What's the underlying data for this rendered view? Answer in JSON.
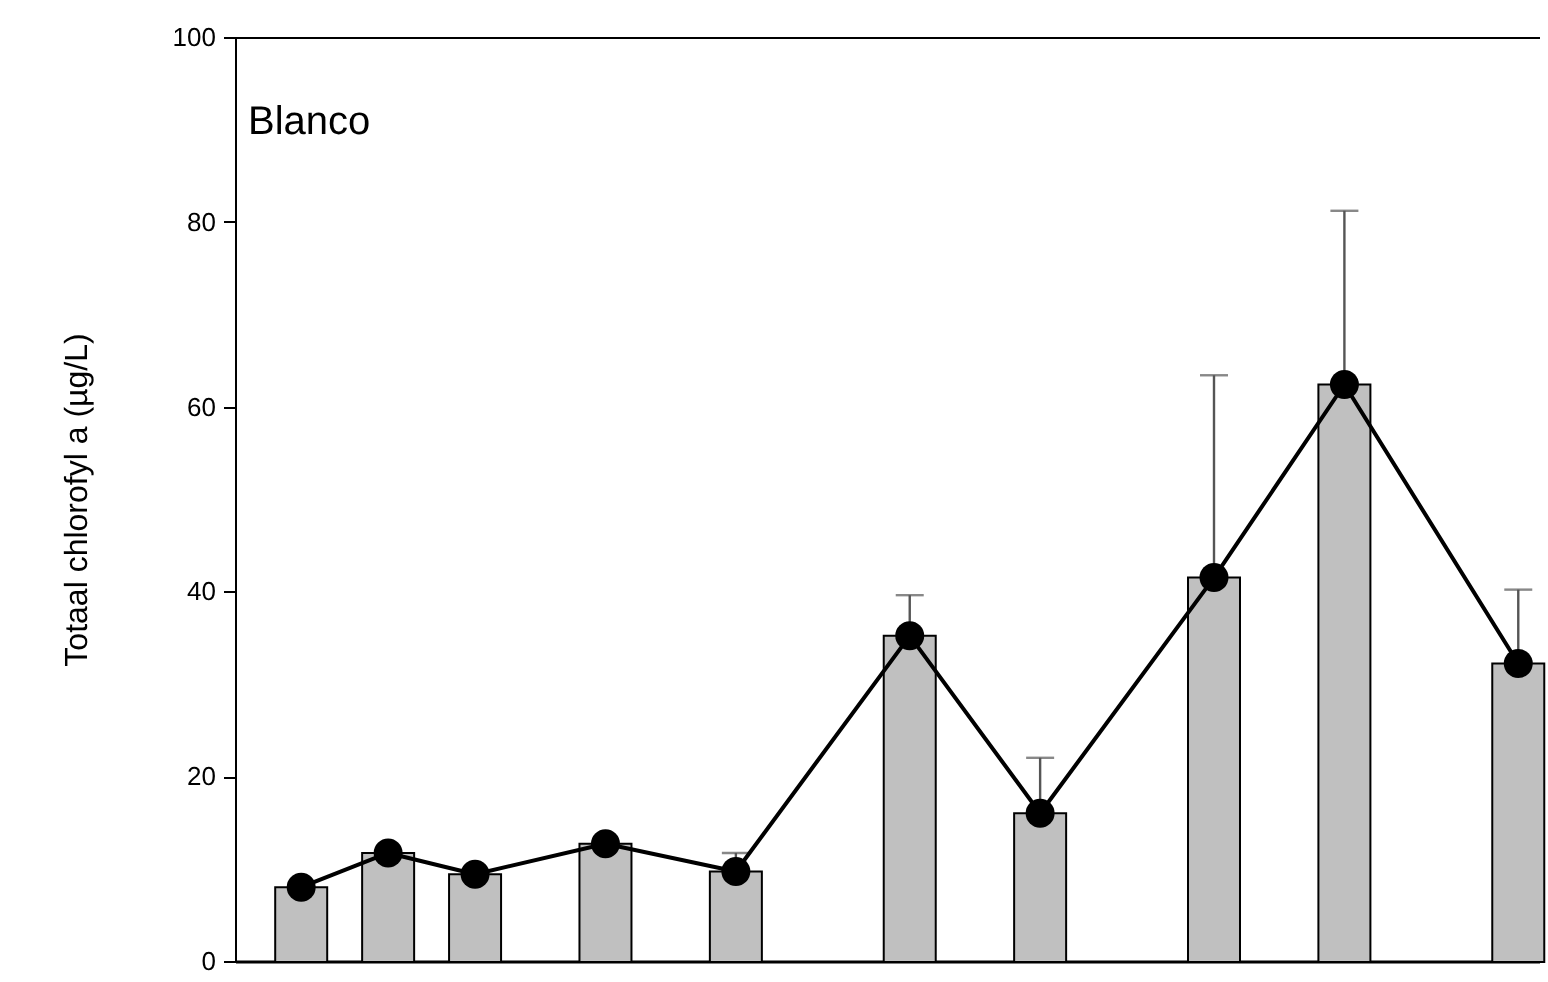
{
  "chart_data": {
    "type": "bar",
    "ylabel": "Totaal chlorofyl a (µg/L)",
    "annotations": [
      "Blanco"
    ],
    "categories": [
      null,
      null,
      null,
      null,
      null,
      null,
      null,
      null,
      null,
      null,
      null,
      null,
      null,
      null,
      null,
      null,
      null,
      null,
      null,
      null,
      null,
      null,
      null,
      null,
      null,
      null,
      null,
      null,
      null,
      null
    ],
    "series": [
      {
        "type": "bar",
        "color": "#c0c0c0",
        "values": [
          null,
          8.1,
          null,
          11.8,
          null,
          9.5,
          null,
          null,
          12.8,
          null,
          null,
          9.8,
          null,
          null,
          null,
          35.3,
          null,
          null,
          16.1,
          null,
          null,
          null,
          41.6,
          null,
          null,
          62.5,
          null,
          null,
          null,
          32.3
        ],
        "errors": [
          null,
          null,
          null,
          null,
          null,
          null,
          null,
          null,
          null,
          null,
          null,
          [
            9.8,
            11.8
          ],
          null,
          null,
          null,
          [
            35.3,
            39.7
          ],
          null,
          null,
          [
            16.1,
            22.1
          ],
          null,
          null,
          null,
          [
            41.6,
            63.5
          ],
          null,
          null,
          [
            62.5,
            81.3
          ],
          null,
          null,
          null,
          [
            32.3,
            40.3
          ]
        ]
      },
      {
        "type": "line",
        "color": "#000000",
        "marker": "circle",
        "line_style": "solid",
        "values": [
          null,
          8.1,
          null,
          11.8,
          null,
          9.5,
          null,
          null,
          12.8,
          null,
          null,
          9.8,
          null,
          null,
          null,
          35.3,
          null,
          null,
          16.1,
          null,
          null,
          null,
          41.6,
          null,
          null,
          62.5,
          null,
          null,
          null,
          32.3
        ]
      }
    ],
    "ylim": [
      0,
      100
    ],
    "yticks": [
      0,
      20,
      40,
      60,
      80,
      100
    ],
    "tick_labels": "y",
    "grid": false
  }
}
